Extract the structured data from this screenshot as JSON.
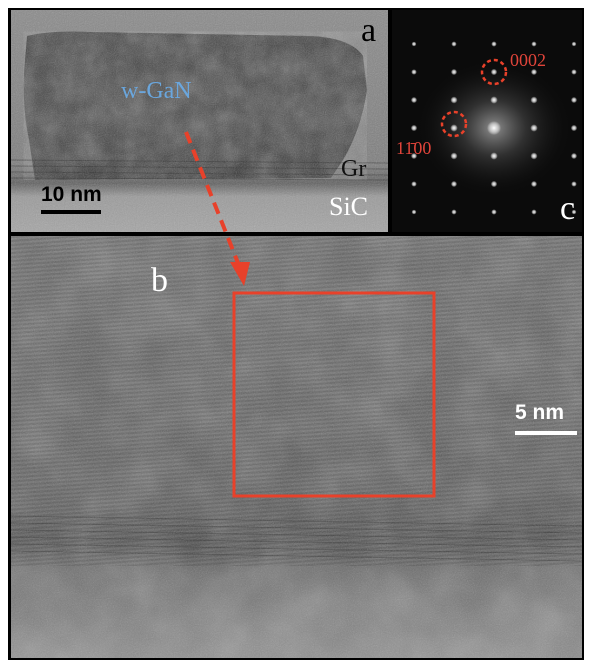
{
  "panels": {
    "a": {
      "letter": "a",
      "material_label": "w-GaN",
      "layer_labels": {
        "graphene": "Gr",
        "substrate": "SiC"
      },
      "scale_bar": "10 nm"
    },
    "b": {
      "letter": "b",
      "scale_bar": "5 nm"
    },
    "c": {
      "letter": "c",
      "spot_labels": {
        "spot_0002": "0002",
        "spot_1100": "11̄00"
      }
    }
  },
  "colors": {
    "annotation_red": "#e8412a",
    "label_blue": "#6aa6dd",
    "letter_black": "#111111",
    "letter_white": "#ffffff",
    "diffraction_label": "#e0443a"
  },
  "icons": {
    "arrow": "dashed-arrow-icon",
    "roi": "roi-rectangle-icon",
    "spot_marker": "dashed-circle-icon"
  }
}
